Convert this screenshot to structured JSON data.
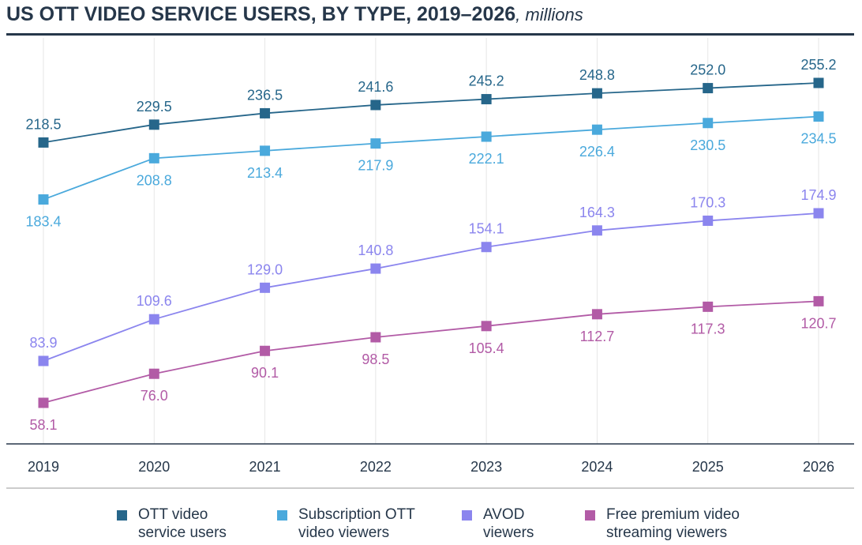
{
  "chart_data": {
    "type": "line",
    "title": "US OTT VIDEO SERVICE USERS, BY TYPE, 2019–2026",
    "unit": ", millions",
    "x": [
      "2019",
      "2020",
      "2021",
      "2022",
      "2023",
      "2024",
      "2025",
      "2026"
    ],
    "grid": "vertical",
    "legend_position": "bottom",
    "series": [
      {
        "name": "OTT video service users",
        "color": "#26668a",
        "label_pos": "above",
        "values": [
          218.5,
          229.5,
          236.5,
          241.6,
          245.2,
          248.8,
          252.0,
          255.2
        ],
        "labels": [
          "218.5",
          "229.5",
          "236.5",
          "241.6",
          "245.2",
          "248.8",
          "252.0",
          "255.2"
        ]
      },
      {
        "name": "Subscription OTT video viewers",
        "color": "#4aa9dc",
        "label_pos": "below",
        "values": [
          183.4,
          208.8,
          213.4,
          217.9,
          222.1,
          226.4,
          230.5,
          234.5
        ],
        "labels": [
          "183.4",
          "208.8",
          "213.4",
          "217.9",
          "222.1",
          "226.4",
          "230.5",
          "234.5"
        ]
      },
      {
        "name": "AVOD viewers",
        "color": "#8b85ee",
        "label_pos": "above",
        "values": [
          83.9,
          109.6,
          129.0,
          140.8,
          154.1,
          164.3,
          170.3,
          174.9
        ],
        "labels": [
          "83.9",
          "109.6",
          "129.0",
          "140.8",
          "154.1",
          "164.3",
          "170.3",
          "174.9"
        ]
      },
      {
        "name": "Free premium video streaming viewers",
        "color": "#b25ba6",
        "label_pos": "below",
        "values": [
          58.1,
          76.0,
          90.1,
          98.5,
          105.4,
          112.7,
          117.3,
          120.7
        ],
        "labels": [
          "58.1",
          "76.0",
          "90.1",
          "98.5",
          "105.4",
          "112.7",
          "117.3",
          "120.7"
        ]
      }
    ]
  },
  "legend": [
    {
      "line1": "OTT video",
      "line2": "service users"
    },
    {
      "line1": "Subscription OTT",
      "line2": "video viewers"
    },
    {
      "line1": "AVOD",
      "line2": "viewers"
    },
    {
      "line1": "Free premium video",
      "line2": "streaming viewers"
    }
  ]
}
